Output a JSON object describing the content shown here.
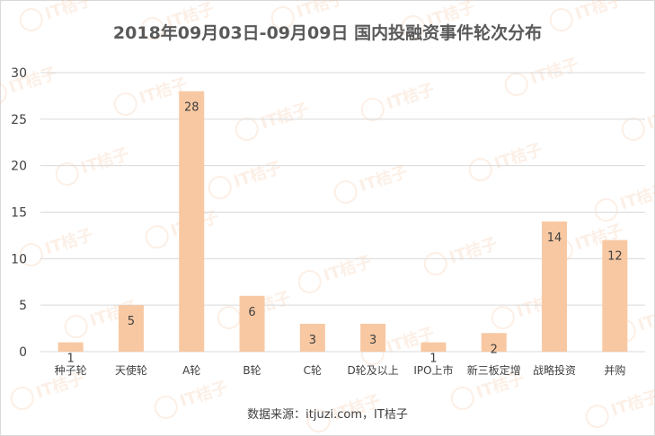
{
  "chart_data": {
    "type": "bar",
    "title": "2018年09月03日-09月09日  国内投融资事件轮次分布",
    "categories": [
      "种子轮",
      "天使轮",
      "A轮",
      "B轮",
      "C轮",
      "D轮及以上",
      "IPO上市",
      "新三板定增",
      "战略投资",
      "并购"
    ],
    "values": [
      1,
      5,
      28,
      6,
      3,
      3,
      1,
      2,
      14,
      12
    ],
    "ylim": [
      0,
      30
    ],
    "yticks": [
      0,
      5,
      10,
      15,
      20,
      25,
      30
    ],
    "grid": true,
    "bar_color": "#f8c8a2",
    "grid_color": "#d9d9d9",
    "label_color": "#404040"
  },
  "source_note": "数据来源：itjuzi.com，IT桔子",
  "watermark": "IT桔子"
}
